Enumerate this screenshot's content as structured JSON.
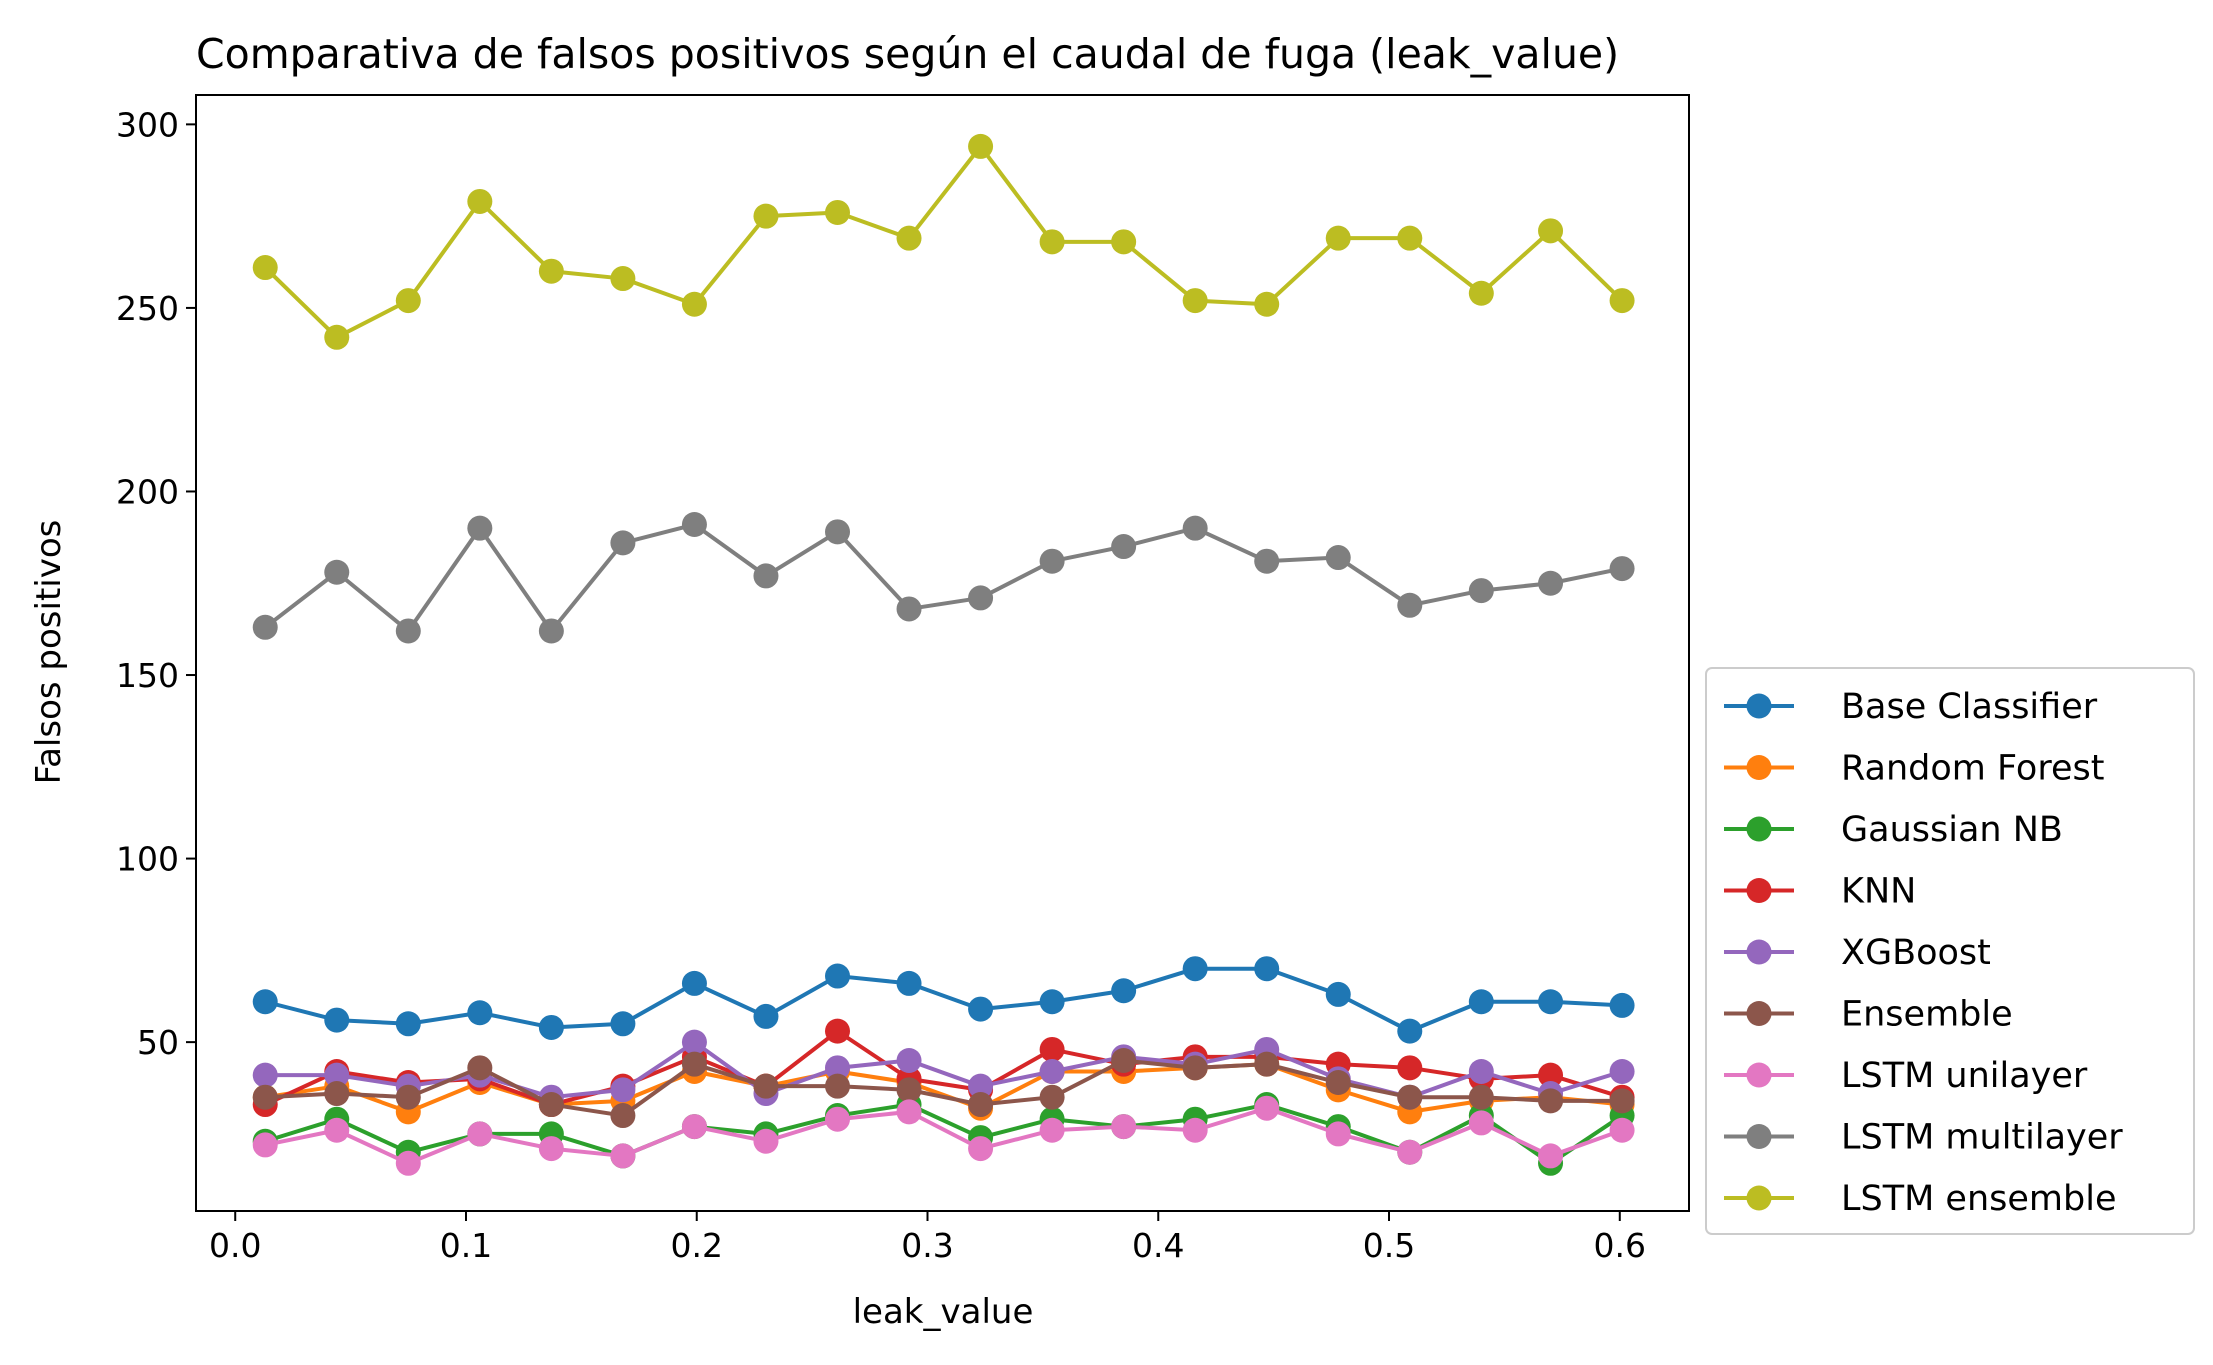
{
  "chart_data": {
    "type": "line",
    "title": "Comparativa de falsos positivos según el caudal de fuga (leak_value)",
    "xlabel": "leak_value",
    "ylabel": "Falsos positivos",
    "xlim": [
      -0.017,
      0.63
    ],
    "ylim": [
      4,
      308
    ],
    "xticks": [
      0.0,
      0.1,
      0.2,
      0.3,
      0.4,
      0.5,
      0.6
    ],
    "xtick_labels": [
      "0.0",
      "0.1",
      "0.2",
      "0.3",
      "0.4",
      "0.5",
      "0.6"
    ],
    "yticks": [
      50,
      100,
      150,
      200,
      250,
      300
    ],
    "ytick_labels": [
      "50",
      "100",
      "150",
      "200",
      "250",
      "300"
    ],
    "grid": false,
    "legend_position": "lower-right outside",
    "x": [
      0.013,
      0.044,
      0.075,
      0.106,
      0.137,
      0.168,
      0.199,
      0.23,
      0.261,
      0.292,
      0.323,
      0.354,
      0.385,
      0.416,
      0.447,
      0.478,
      0.509,
      0.54,
      0.57,
      0.601
    ],
    "series": [
      {
        "name": "Base Classifier",
        "color": "#1f77b4",
        "values": [
          61,
          56,
          55,
          58,
          54,
          55,
          66,
          57,
          68,
          66,
          59,
          61,
          64,
          70,
          70,
          63,
          53,
          61,
          61,
          60
        ]
      },
      {
        "name": "Random Forest",
        "color": "#ff7f0e",
        "values": [
          35,
          38,
          31,
          39,
          33,
          34,
          42,
          38,
          42,
          39,
          32,
          42,
          42,
          43,
          44,
          37,
          31,
          34,
          35,
          33
        ]
      },
      {
        "name": "Gaussian NB",
        "color": "#2ca02c",
        "values": [
          23,
          29,
          20,
          25,
          25,
          19,
          27,
          25,
          30,
          33,
          24,
          29,
          27,
          29,
          33,
          27,
          20,
          30,
          17,
          30
        ]
      },
      {
        "name": "KNN",
        "color": "#d62728",
        "values": [
          33,
          42,
          39,
          40,
          33,
          38,
          46,
          38,
          53,
          40,
          37,
          48,
          44,
          46,
          46,
          44,
          43,
          40,
          41,
          35
        ]
      },
      {
        "name": "XGBoost",
        "color": "#9467bd",
        "values": [
          41,
          41,
          38,
          41,
          35,
          37,
          50,
          36,
          43,
          45,
          38,
          42,
          46,
          44,
          48,
          40,
          35,
          42,
          36,
          42
        ]
      },
      {
        "name": "Ensemble",
        "color": "#8c564b",
        "values": [
          35,
          36,
          35,
          43,
          33,
          30,
          44,
          38,
          38,
          37,
          33,
          35,
          45,
          43,
          44,
          39,
          35,
          35,
          34,
          34
        ]
      },
      {
        "name": "LSTM unilayer",
        "color": "#e377c2",
        "values": [
          22,
          26,
          17,
          25,
          21,
          19,
          27,
          23,
          29,
          31,
          21,
          26,
          27,
          26,
          32,
          25,
          20,
          28,
          19,
          26
        ]
      },
      {
        "name": "LSTM multilayer",
        "color": "#7f7f7f",
        "values": [
          163,
          178,
          162,
          190,
          162,
          186,
          191,
          177,
          189,
          168,
          171,
          181,
          185,
          190,
          181,
          182,
          169,
          173,
          175,
          179
        ]
      },
      {
        "name": "LSTM ensemble",
        "color": "#bcbd22",
        "values": [
          261,
          242,
          252,
          279,
          260,
          258,
          251,
          275,
          276,
          269,
          294,
          268,
          268,
          252,
          251,
          269,
          269,
          254,
          271,
          252
        ]
      }
    ]
  }
}
